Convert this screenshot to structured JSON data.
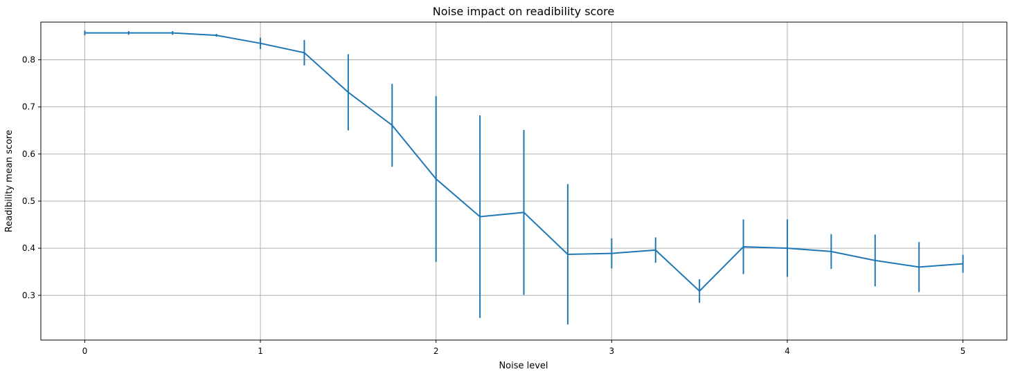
{
  "chart_data": {
    "type": "line",
    "title": "Noise impact on readibility score",
    "xlabel": "Noise level",
    "ylabel": "Readibility mean score",
    "xlim": [
      -0.25,
      5.25
    ],
    "ylim": [
      0.205,
      0.88
    ],
    "xticks": [
      0,
      1,
      2,
      3,
      4,
      5
    ],
    "yticks": [
      0.3,
      0.4,
      0.5,
      0.6,
      0.7,
      0.8
    ],
    "grid": true,
    "color": "#1f77b4",
    "series": [
      {
        "x": [
          0,
          0.25,
          0.5,
          0.75,
          1.0,
          1.25,
          1.5,
          1.75,
          2.0,
          2.25,
          2.5,
          2.75,
          3.0,
          3.25,
          3.5,
          3.75,
          4.0,
          4.25,
          4.5,
          4.75,
          5.0
        ],
        "y": [
          0.857,
          0.857,
          0.857,
          0.852,
          0.835,
          0.815,
          0.731,
          0.661,
          0.547,
          0.467,
          0.476,
          0.387,
          0.389,
          0.396,
          0.309,
          0.403,
          0.4,
          0.393,
          0.374,
          0.36,
          0.367
        ],
        "err": [
          0.005,
          0.004,
          0.004,
          0.003,
          0.012,
          0.027,
          0.081,
          0.088,
          0.176,
          0.215,
          0.175,
          0.149,
          0.032,
          0.027,
          0.025,
          0.058,
          0.061,
          0.037,
          0.055,
          0.053,
          0.019
        ]
      }
    ]
  }
}
